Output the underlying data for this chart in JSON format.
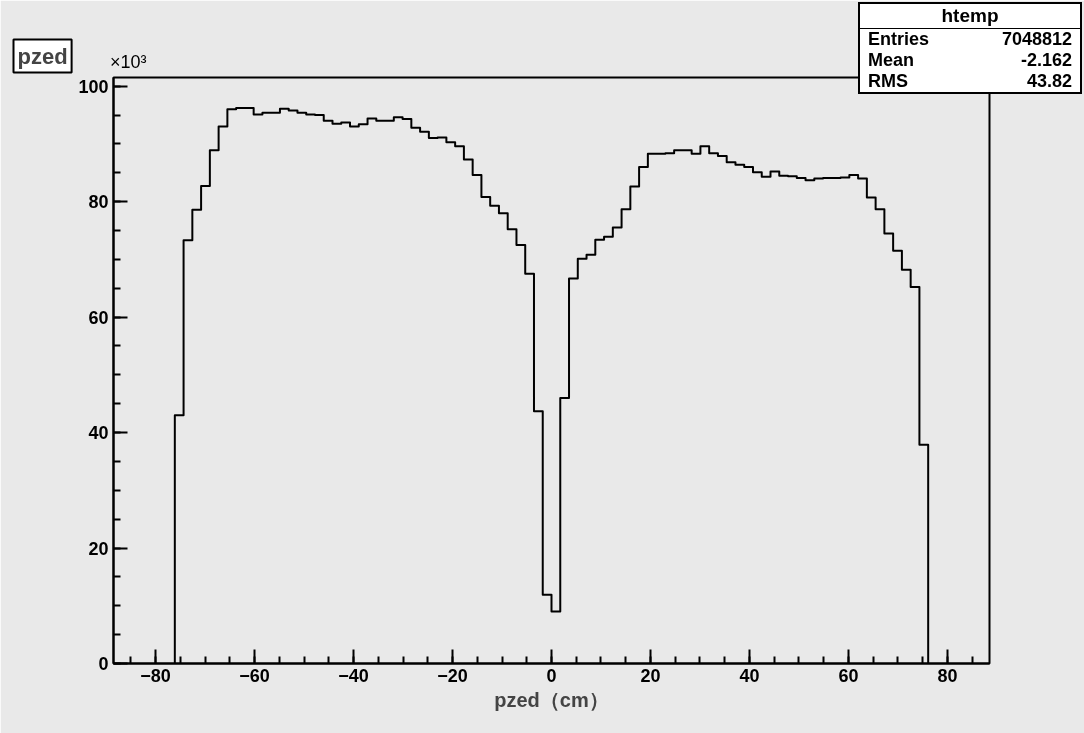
{
  "chart_data": {
    "type": "histogram",
    "title": "pzed",
    "xlabel": "pzed（cm）",
    "bins": [
      -76.11,
      -74.34,
      -72.57,
      -70.8,
      -69.03,
      -67.26,
      -65.49,
      -63.72,
      -61.95,
      -60.18,
      -58.41,
      -56.64,
      -54.87,
      -53.1,
      -51.33,
      -49.56,
      -47.79,
      -46.02,
      -44.25,
      -42.48,
      -40.71,
      -38.94,
      -37.17,
      -35.4,
      -33.63,
      -31.86,
      -30.09,
      -28.32,
      -26.55,
      -24.78,
      -23.01,
      -21.24,
      -19.47,
      -17.7,
      -15.93,
      -14.16,
      -12.39,
      -10.62,
      -8.85,
      -7.08,
      -5.31,
      -3.54,
      -1.77,
      0,
      1.77,
      3.54,
      5.31,
      7.08,
      8.85,
      10.62,
      12.39,
      14.16,
      15.93,
      17.7,
      19.47,
      21.24,
      23.01,
      24.78,
      26.55,
      28.32,
      30.09,
      31.86,
      33.63,
      35.4,
      37.17,
      38.94,
      40.71,
      42.48,
      44.25,
      46.02,
      47.79,
      49.56,
      51.33,
      53.1,
      54.87,
      56.64,
      58.41,
      60.18,
      61.95,
      63.72,
      65.49,
      67.26,
      69.03,
      70.8,
      72.57,
      74.34,
      76.11
    ],
    "values": [
      43.0,
      73.3,
      78.6,
      82.7,
      88.9,
      93.0,
      96.0,
      96.2,
      96.2,
      95.1,
      95.4,
      95.4,
      96.1,
      95.8,
      95.4,
      95.1,
      95.0,
      94.0,
      93.5,
      93.7,
      93.0,
      93.4,
      94.4,
      94.0,
      94.0,
      94.6,
      94.3,
      92.8,
      92.1,
      91.0,
      91.1,
      90.3,
      89.6,
      87.3,
      84.6,
      80.8,
      79.3,
      78.0,
      75.2,
      72.5,
      67.5,
      43.7,
      11.9,
      9.0,
      46.0,
      66.7,
      70.1,
      70.8,
      73.4,
      73.9,
      75.5,
      78.7,
      82.6,
      86.0,
      88.3,
      88.3,
      88.4,
      88.9,
      88.9,
      88.3,
      89.6,
      88.4,
      87.9,
      86.8,
      86.4,
      86.0,
      85.1,
      84.3,
      85.2,
      84.5,
      84.4,
      84.1,
      83.7,
      84.0,
      84.1,
      84.1,
      84.2,
      84.6,
      84.0,
      80.7,
      78.7,
      74.5,
      71.5,
      68.2,
      65.2,
      37.9
    ],
    "color": "#000000",
    "xlim": [
      -88.5,
      88.5
    ],
    "xticks": [
      -80,
      -60,
      -40,
      -20,
      0,
      20,
      40,
      60,
      80
    ],
    "ylim": [
      0,
      101.5
    ],
    "yticks": [
      0,
      20,
      40,
      60,
      80,
      100
    ],
    "annotations": [
      "×10³",
      "htemp",
      "Entries 7048812",
      "Mean -2.162",
      "RMS 43.82"
    ],
    "grid": false
  }
}
